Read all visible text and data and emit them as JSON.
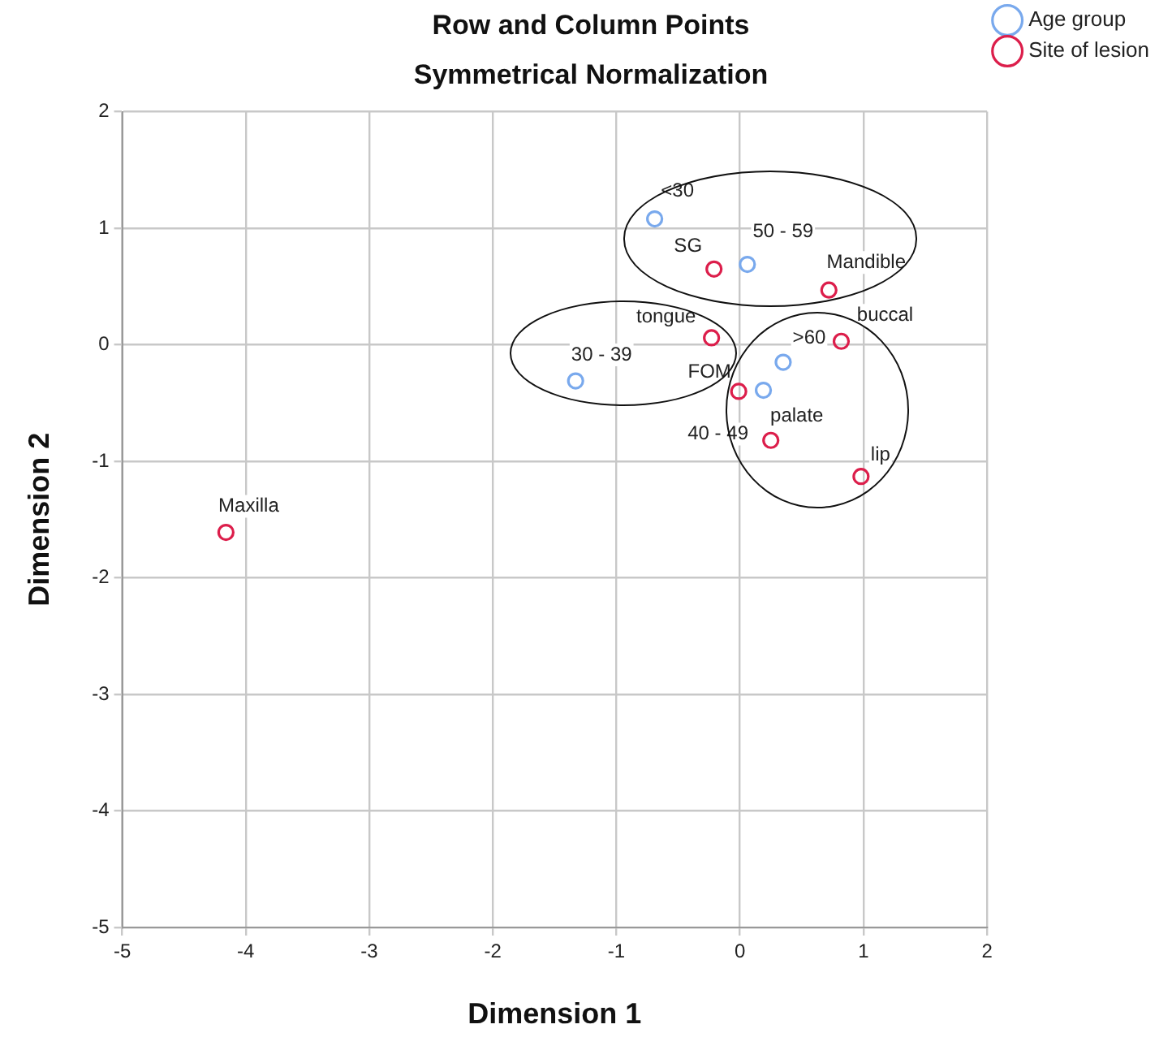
{
  "chart_data": {
    "type": "scatter",
    "title": "Row and Column Points",
    "subtitle": "Symmetrical Normalization",
    "xlabel": "Dimension 1",
    "ylabel": "Dimension 2",
    "xlim": [
      -5,
      2
    ],
    "xticks": [
      -5,
      -4,
      -3,
      -2,
      -1,
      0,
      1,
      2
    ],
    "ylim": [
      -5,
      2
    ],
    "yticks": [
      -5,
      -4,
      -3,
      -2,
      -1,
      0,
      1,
      2
    ],
    "grid": true,
    "legend": "top right",
    "marker": "circle",
    "series": [
      {
        "name": "Age group",
        "color": "#79a9ed",
        "x": [
          -0.69,
          0.06,
          -1.33,
          0.35,
          0.19
        ],
        "values": [
          1.08,
          0.69,
          -0.31,
          -0.15,
          -0.39
        ]
      },
      {
        "name": "Site of lesion",
        "color": "#dc1e4b",
        "x": [
          -0.21,
          0.72,
          -0.23,
          0.82,
          -0.01,
          0.25,
          0.98,
          -4.16
        ],
        "values": [
          0.65,
          0.47,
          0.06,
          0.03,
          -0.4,
          -0.82,
          -1.13,
          -1.61
        ]
      }
    ],
    "annotations": [
      {
        "text": "<30",
        "x": -0.69,
        "y": 1.08
      },
      {
        "text": "50 - 59",
        "x": 0.06,
        "y": 0.69
      },
      {
        "text": "30 - 39",
        "x": -1.33,
        "y": -0.31
      },
      {
        "text": ">60",
        "x": 0.35,
        "y": -0.15
      },
      {
        "text": "40 - 49",
        "x": 0.19,
        "y": -0.39
      },
      {
        "text": "SG",
        "x": -0.21,
        "y": 0.65
      },
      {
        "text": "Mandible",
        "x": 0.72,
        "y": 0.47
      },
      {
        "text": "tongue",
        "x": -0.23,
        "y": 0.06
      },
      {
        "text": "buccal",
        "x": 0.82,
        "y": 0.03
      },
      {
        "text": "FOM",
        "x": -0.01,
        "y": -0.4
      },
      {
        "text": "palate",
        "x": 0.25,
        "y": -0.82
      },
      {
        "text": "lip",
        "x": 0.98,
        "y": -1.13
      },
      {
        "text": "Maxilla",
        "x": -4.16,
        "y": -1.61
      }
    ]
  }
}
